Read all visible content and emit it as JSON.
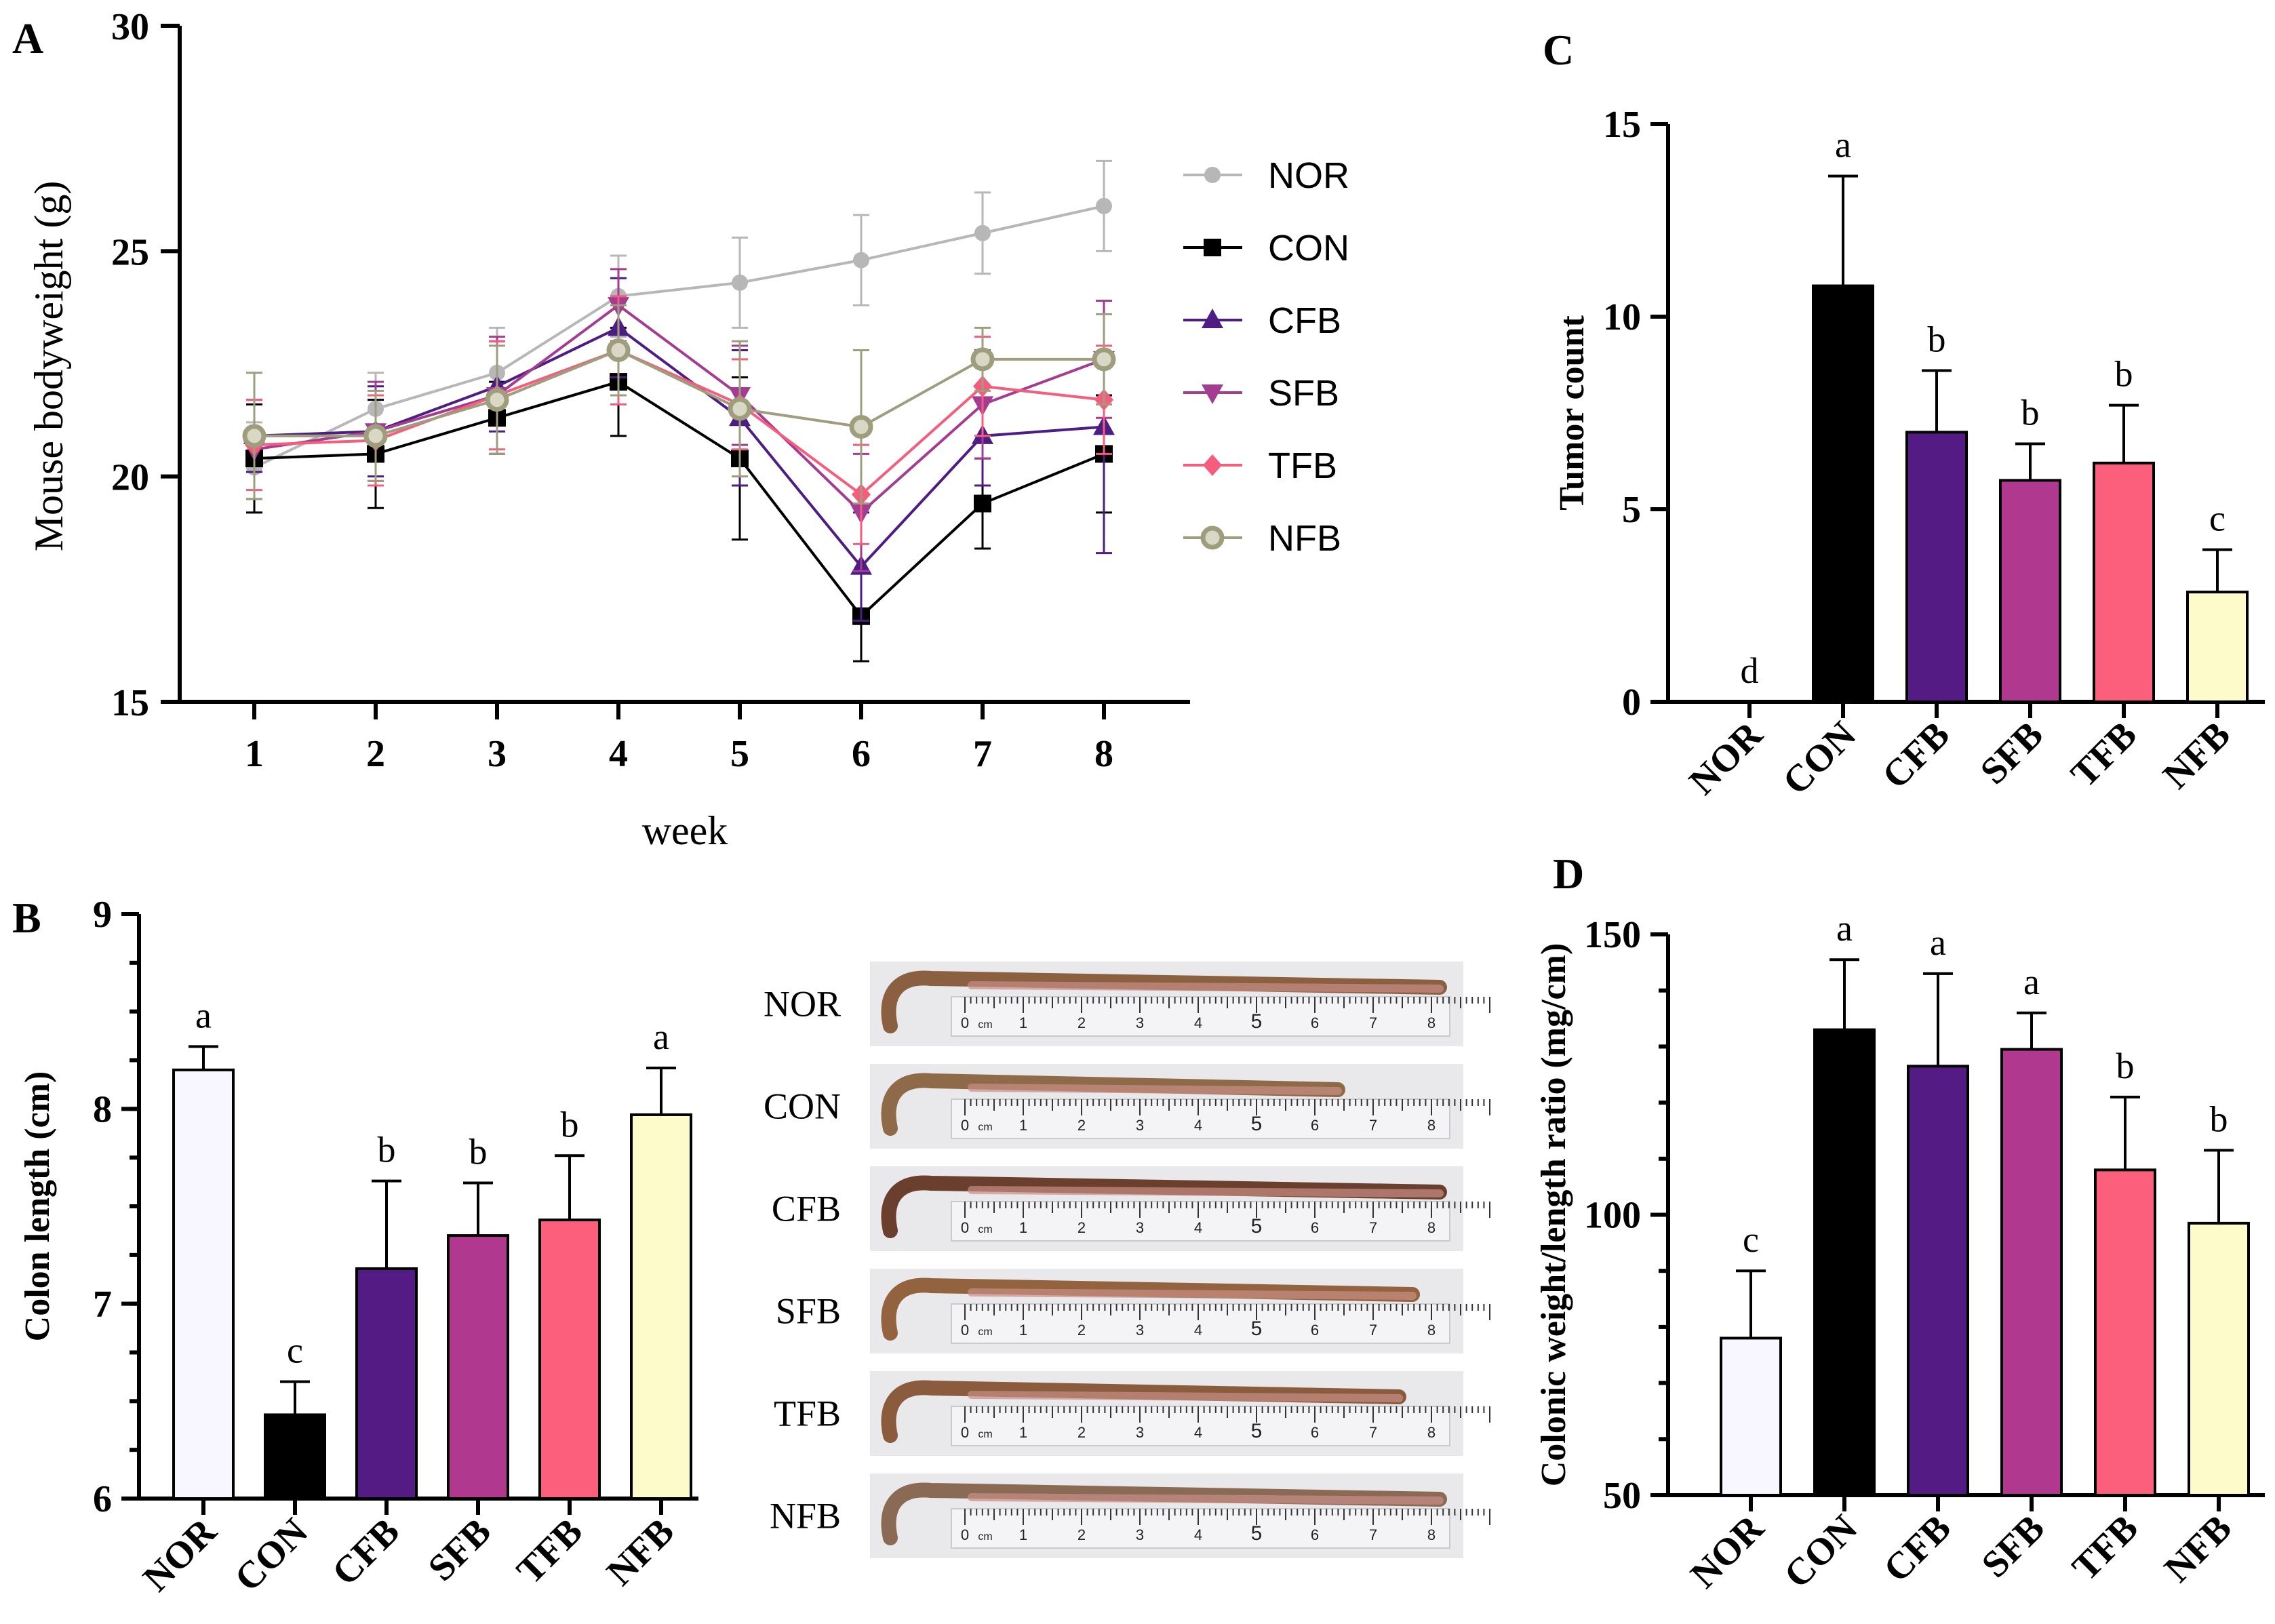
{
  "panels": {
    "A": "A",
    "B": "B",
    "C": "C",
    "D": "D"
  },
  "colors": {
    "NOR": "#f8f6ff",
    "CON": "#000000",
    "CFB": "#541b85",
    "SFB": "#b0398f",
    "TFB": "#fb5f7c",
    "NFB": "#fdfbca",
    "line_NOR": "#b7b7b7",
    "line_CON": "#000000",
    "line_CFB": "#4e1d84",
    "line_SFB": "#a43c92",
    "line_TFB": "#f55d7d",
    "line_NFB": "#9e9e7f"
  },
  "chart_data": [
    {
      "id": "A",
      "type": "line",
      "title": "",
      "xlabel": "week",
      "ylabel": "Mouse bodyweight (g)",
      "x": [
        1,
        2,
        3,
        4,
        5,
        6,
        7,
        8
      ],
      "xticks": [
        "1",
        "2",
        "3",
        "4",
        "5",
        "6",
        "7",
        "8"
      ],
      "ylim": [
        15,
        30
      ],
      "yticks": [
        "15",
        "20",
        "25",
        "30"
      ],
      "series": [
        {
          "name": "NOR",
          "marker": "circle",
          "values": [
            20.2,
            21.5,
            22.3,
            24.0,
            24.3,
            24.8,
            25.4,
            26.0
          ],
          "err": [
            1.0,
            0.8,
            1.0,
            0.9,
            1.0,
            1.0,
            0.9,
            1.0
          ]
        },
        {
          "name": "CON",
          "marker": "square",
          "values": [
            20.4,
            20.5,
            21.3,
            22.1,
            20.4,
            16.9,
            19.4,
            20.5
          ],
          "err": [
            1.2,
            1.2,
            0.8,
            1.2,
            1.8,
            1.0,
            1.0,
            1.3
          ]
        },
        {
          "name": "CFB",
          "marker": "triangle-up",
          "values": [
            20.9,
            21.0,
            22.0,
            23.3,
            21.3,
            18.0,
            20.9,
            21.1
          ],
          "err": [
            0.8,
            1.0,
            1.0,
            1.1,
            1.5,
            1.2,
            1.1,
            2.8
          ]
        },
        {
          "name": "SFB",
          "marker": "triangle-down",
          "values": [
            20.6,
            21.0,
            21.8,
            23.8,
            21.8,
            19.2,
            21.6,
            22.6
          ],
          "err": [
            1.1,
            1.1,
            1.3,
            0.8,
            1.1,
            1.3,
            1.2,
            1.3
          ]
        },
        {
          "name": "TFB",
          "marker": "diamond",
          "values": [
            20.7,
            20.8,
            21.8,
            22.8,
            21.6,
            19.6,
            22.0,
            21.7
          ],
          "err": [
            1.0,
            1.0,
            1.2,
            1.2,
            1.0,
            1.1,
            1.1,
            1.2
          ]
        },
        {
          "name": "NFB",
          "marker": "circle-open",
          "values": [
            20.9,
            20.9,
            21.7,
            22.8,
            21.5,
            21.1,
            22.6,
            22.6
          ],
          "err": [
            1.4,
            1.0,
            1.2,
            1.0,
            1.5,
            1.7,
            0.7,
            1.0
          ]
        }
      ]
    },
    {
      "id": "B",
      "type": "bar",
      "ylabel": "Colon length (cm)",
      "categories": [
        "NOR",
        "CON",
        "CFB",
        "SFB",
        "TFB",
        "NFB"
      ],
      "values": [
        8.2,
        6.43,
        7.18,
        7.35,
        7.43,
        7.97
      ],
      "err": [
        0.12,
        0.17,
        0.45,
        0.27,
        0.33,
        0.24
      ],
      "letters": [
        "a",
        "c",
        "b",
        "b",
        "b",
        "a"
      ],
      "ylim": [
        6,
        9
      ],
      "yticks": [
        "6",
        "7",
        "8",
        "9"
      ]
    },
    {
      "id": "C",
      "type": "bar",
      "ylabel": "Tumor count",
      "categories": [
        "NOR",
        "CON",
        "CFB",
        "SFB",
        "TFB",
        "NFB"
      ],
      "values": [
        0,
        10.8,
        7.0,
        5.75,
        6.2,
        2.85
      ],
      "err": [
        0,
        2.85,
        1.6,
        0.95,
        1.5,
        1.1
      ],
      "letters": [
        "d",
        "a",
        "b",
        "b",
        "b",
        "c"
      ],
      "ylim": [
        0,
        15
      ],
      "yticks": [
        "0",
        "5",
        "10",
        "15"
      ]
    },
    {
      "id": "D",
      "type": "bar",
      "ylabel": "Colonic weight/length ratio (mg/cm)",
      "categories": [
        "NOR",
        "CON",
        "CFB",
        "SFB",
        "TFB",
        "NFB"
      ],
      "values": [
        78,
        133,
        126.5,
        129.5,
        108,
        98.5
      ],
      "err": [
        12,
        12.5,
        16.5,
        6.5,
        13,
        13
      ],
      "letters": [
        "c",
        "a",
        "a",
        "a",
        "b",
        "b"
      ],
      "ylim": [
        50,
        150
      ],
      "yticks": [
        "50",
        "100",
        "150"
      ]
    }
  ],
  "photo": {
    "labels": [
      "NOR",
      "CON",
      "CFB",
      "SFB",
      "TFB",
      "NFB"
    ],
    "ruler_numbers": [
      "0",
      "cm",
      "1",
      "2",
      "3",
      "4",
      "5",
      "6",
      "7",
      "8"
    ]
  }
}
